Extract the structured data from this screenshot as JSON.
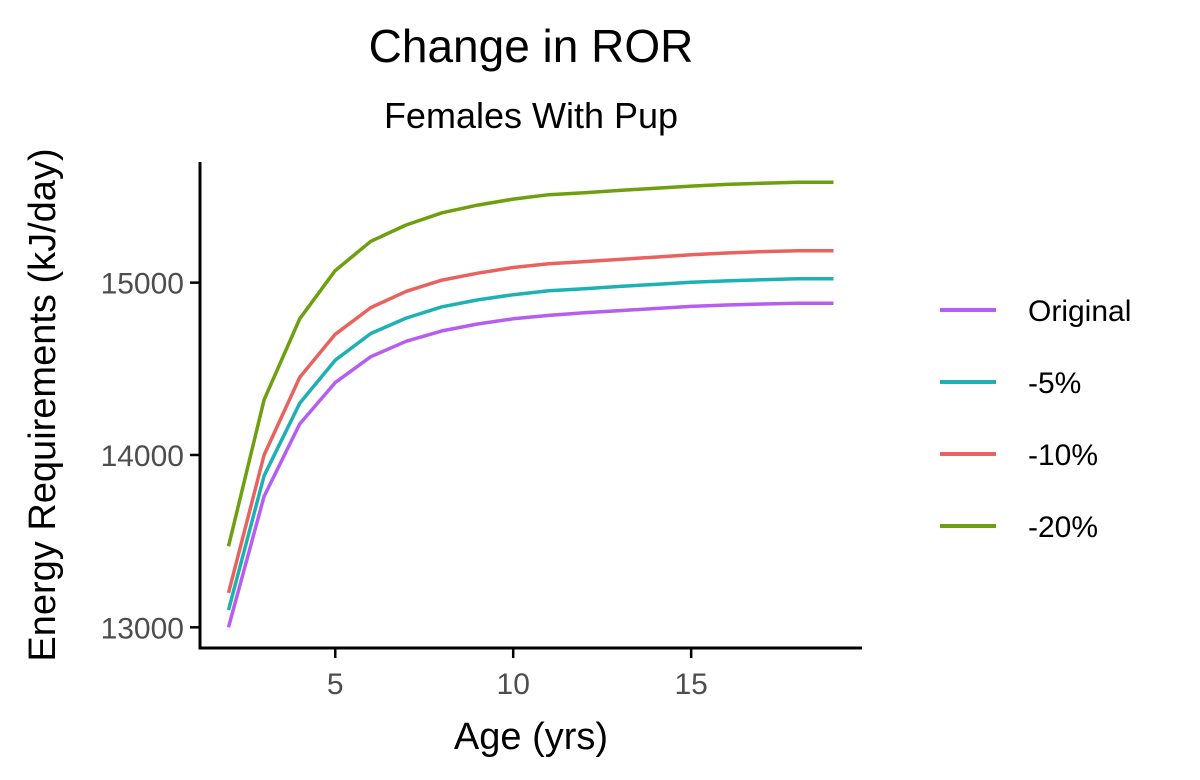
{
  "chart_data": {
    "type": "line",
    "title": "Change in ROR",
    "subtitle": "Females With Pup",
    "xlabel": "Age (yrs)",
    "ylabel": "Energy Requirements (kJ/day)",
    "xlim": [
      1.2,
      19.8
    ],
    "ylim": [
      12880,
      15700
    ],
    "xticks": [
      5,
      10,
      15
    ],
    "yticks": [
      13000,
      14000,
      15000
    ],
    "grid": false,
    "legend_position": "right",
    "x": [
      2,
      3,
      4,
      5,
      6,
      7,
      8,
      9,
      10,
      11,
      12,
      13,
      14,
      15,
      16,
      17,
      18,
      19
    ],
    "series": [
      {
        "name": "Original",
        "color": "#b65ef0",
        "values": [
          13000,
          13760,
          14180,
          14420,
          14570,
          14660,
          14720,
          14760,
          14790,
          14810,
          14825,
          14838,
          14850,
          14862,
          14870,
          14876,
          14880,
          14880
        ]
      },
      {
        "name": "-5%",
        "color": "#1db1b4",
        "values": [
          13100,
          13880,
          14300,
          14550,
          14705,
          14795,
          14860,
          14900,
          14930,
          14953,
          14965,
          14978,
          14990,
          15002,
          15010,
          15017,
          15022,
          15022
        ]
      },
      {
        "name": "-10%",
        "color": "#e8625f",
        "values": [
          13200,
          14000,
          14450,
          14700,
          14855,
          14950,
          15015,
          15055,
          15088,
          15110,
          15122,
          15135,
          15148,
          15162,
          15172,
          15180,
          15185,
          15185
        ]
      },
      {
        "name": "-20%",
        "color": "#6d9f0e",
        "values": [
          13470,
          14320,
          14790,
          15070,
          15240,
          15335,
          15405,
          15450,
          15485,
          15510,
          15522,
          15535,
          15548,
          15560,
          15570,
          15577,
          15583,
          15583
        ]
      }
    ]
  }
}
